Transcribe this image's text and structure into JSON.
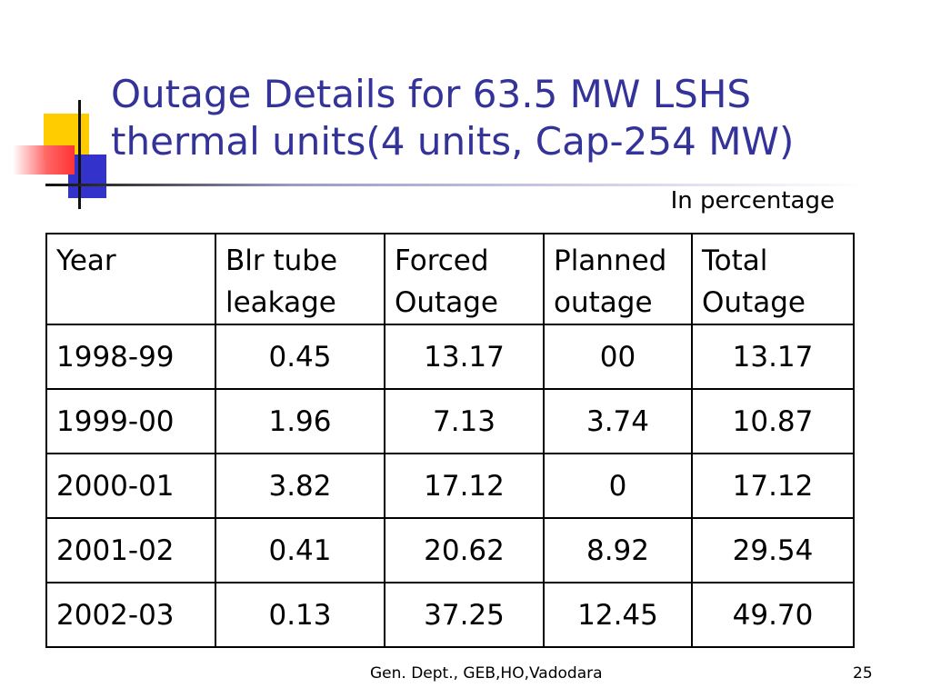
{
  "slide": {
    "title": "Outage Details for 63.5 MW LSHS thermal units(4 units, Cap-254 MW)",
    "unit_note": "In percentage",
    "footer": "Gen. Dept., GEB,HO,Vadodara",
    "page_number": "25"
  },
  "colors": {
    "title": "#333399",
    "deco_yellow": "#ffcc00",
    "deco_blue": "#3333cc",
    "deco_red": "#ff3333"
  },
  "table": {
    "headers": [
      "Year",
      "Blr tube leakage",
      "Forced Outage",
      "Planned outage",
      "Total Outage"
    ],
    "rows": [
      [
        "1998-99",
        "0.45",
        "13.17",
        "00",
        "13.17"
      ],
      [
        "1999-00",
        "1.96",
        "7.13",
        "3.74",
        "10.87"
      ],
      [
        "2000-01",
        "3.82",
        "17.12",
        "0",
        "17.12"
      ],
      [
        "2001-02",
        "0.41",
        "20.62",
        "8.92",
        "29.54"
      ],
      [
        "2002-03",
        "0.13",
        "37.25",
        "12.45",
        "49.70"
      ]
    ]
  }
}
